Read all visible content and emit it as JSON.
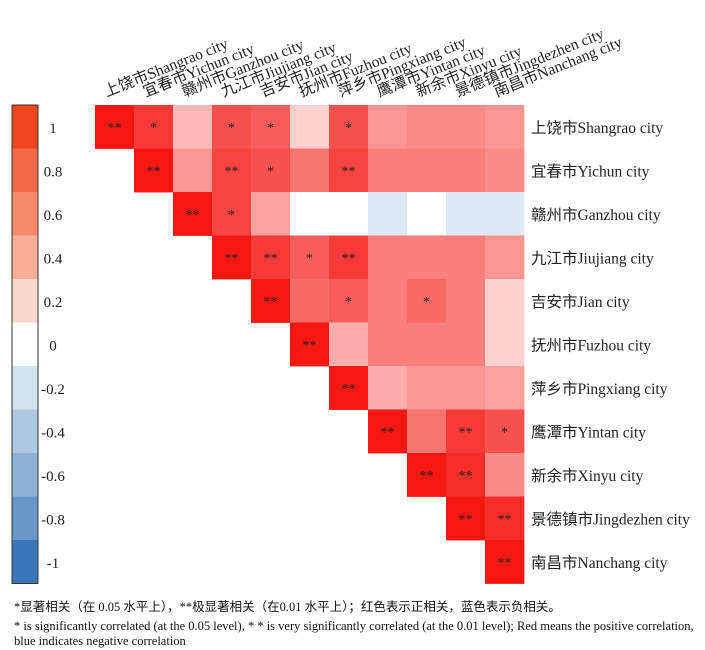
{
  "chart_data": {
    "type": "heatmap",
    "title": "",
    "labels": [
      "上饶市Shangrao city",
      "宜春市Yichun city",
      "赣州市Ganzhou city",
      "九江市Jiujiang city",
      "吉安市Jian city",
      "抚州市Fuzhou city",
      "萍乡市Pingxiang city",
      "鹰潭市Yintan city",
      "新余市Xinyu city",
      "景德镇市Jingdezhen city",
      "南昌市Nanchang city"
    ],
    "matrix": [
      [
        1.0,
        0.85,
        0.3,
        0.75,
        0.7,
        0.2,
        0.75,
        0.45,
        0.5,
        0.5,
        0.45
      ],
      [
        null,
        1.0,
        0.45,
        0.8,
        0.75,
        0.6,
        0.8,
        0.55,
        0.55,
        0.55,
        0.5
      ],
      [
        null,
        null,
        1.0,
        0.8,
        0.4,
        0.0,
        0.0,
        -0.15,
        0.0,
        -0.15,
        -0.15
      ],
      [
        null,
        null,
        null,
        1.0,
        0.85,
        0.7,
        0.85,
        0.55,
        0.55,
        0.55,
        0.45
      ],
      [
        null,
        null,
        null,
        null,
        1.0,
        0.65,
        0.7,
        0.55,
        0.65,
        0.55,
        0.2
      ],
      [
        null,
        null,
        null,
        null,
        null,
        1.0,
        0.35,
        0.55,
        0.55,
        0.55,
        0.2
      ],
      [
        null,
        null,
        null,
        null,
        null,
        null,
        1.0,
        0.35,
        0.45,
        0.45,
        0.4
      ],
      [
        null,
        null,
        null,
        null,
        null,
        null,
        null,
        1.0,
        0.6,
        0.85,
        0.75
      ],
      [
        null,
        null,
        null,
        null,
        null,
        null,
        null,
        null,
        1.0,
        0.9,
        0.5
      ],
      [
        null,
        null,
        null,
        null,
        null,
        null,
        null,
        null,
        null,
        1.0,
        0.9
      ],
      [
        null,
        null,
        null,
        null,
        null,
        null,
        null,
        null,
        null,
        null,
        1.0
      ]
    ],
    "significance": [
      [
        "**",
        "*",
        "",
        "*",
        "*",
        "",
        "*",
        "",
        "",
        "",
        ""
      ],
      [
        "",
        "**",
        "",
        "**",
        "*",
        "",
        "**",
        "",
        "",
        "",
        ""
      ],
      [
        "",
        "",
        "**",
        "*",
        "",
        "",
        "",
        "",
        "",
        "",
        ""
      ],
      [
        "",
        "",
        "",
        "**",
        "**",
        "*",
        "**",
        "",
        "",
        "",
        ""
      ],
      [
        "",
        "",
        "",
        "",
        "**",
        "",
        "*",
        "",
        "*",
        "",
        ""
      ],
      [
        "",
        "",
        "",
        "",
        "",
        "**",
        "",
        "",
        "",
        "",
        ""
      ],
      [
        "",
        "",
        "",
        "",
        "",
        "",
        "**",
        "",
        "",
        "",
        ""
      ],
      [
        "",
        "",
        "",
        "",
        "",
        "",
        "",
        "**",
        "",
        "**",
        "*"
      ],
      [
        "",
        "",
        "",
        "",
        "",
        "",
        "",
        "",
        "**",
        "**",
        ""
      ],
      [
        "",
        "",
        "",
        "",
        "",
        "",
        "",
        "",
        "",
        "**",
        "**"
      ],
      [
        "",
        "",
        "",
        "",
        "",
        "",
        "",
        "",
        "",
        "",
        "**"
      ]
    ],
    "legend": {
      "ticks": [
        "1",
        "0.8",
        "0.6",
        "0.4",
        "0.2",
        "0",
        "-0.2",
        "-0.4",
        "-0.6",
        "-0.8",
        "-1"
      ],
      "colors": [
        "#f0461f",
        "#f36a48",
        "#f58a6d",
        "#f7ad95",
        "#fad8cc",
        "#ffffff",
        "#d3e2ef",
        "#b0c9e2",
        "#8fb1d5",
        "#6b97c8",
        "#3977b8"
      ]
    },
    "colors": {
      "positive": "#f41712",
      "negative": "#2c6fb3",
      "neutral": "#ffffff"
    }
  },
  "footnote": {
    "cn": "*显著相关（在 0.05 水平上），**极显著相关（在0.01 水平上）；红色表示正相关，蓝色表示负相关。",
    "en": "* is significantly correlated (at the 0.05 level), * * is very significantly correlated (at the 0.01 level); Red means the positive correlation, blue indicates negative correlation"
  }
}
